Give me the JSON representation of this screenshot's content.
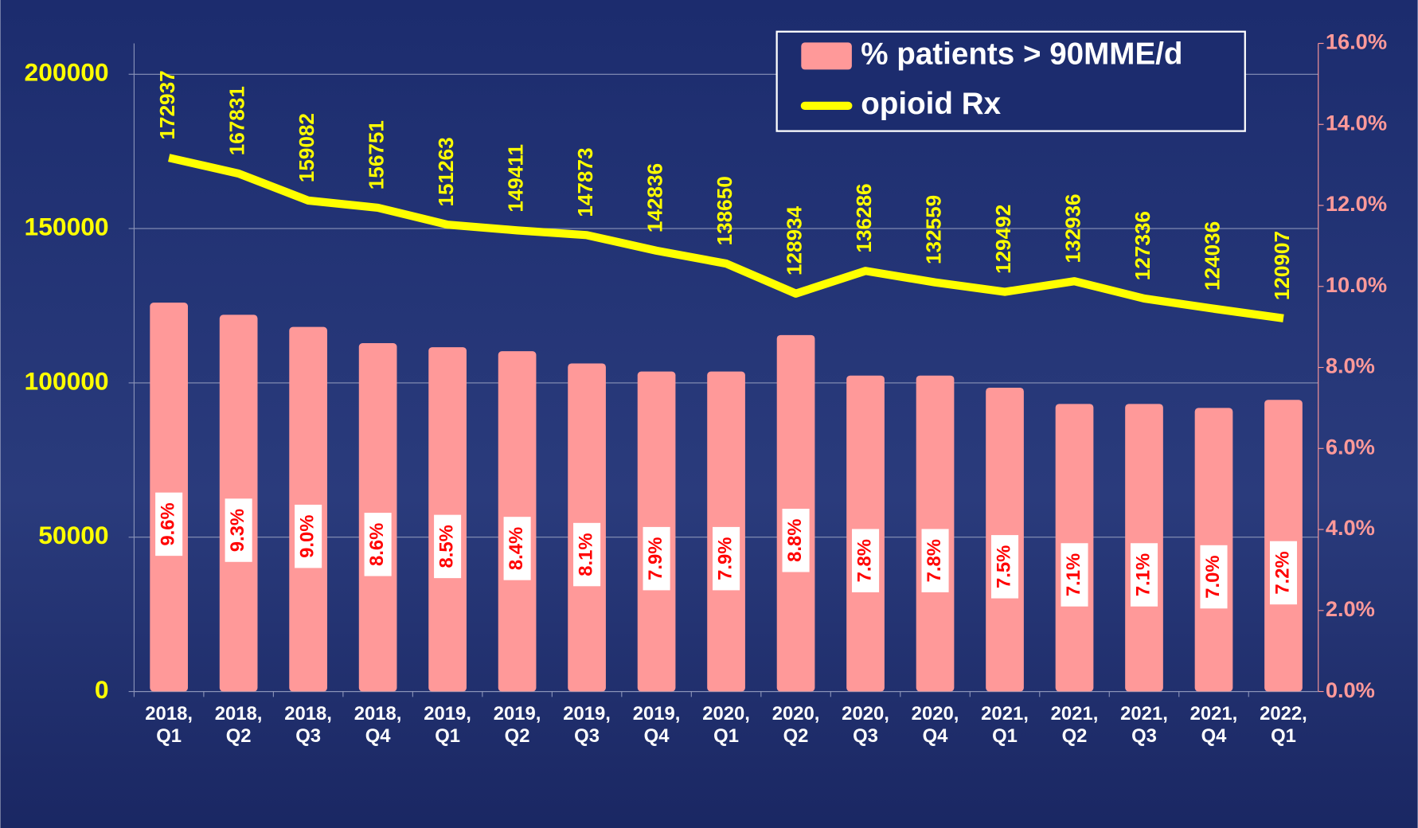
{
  "chart_data": {
    "type": "bar-line",
    "categories": [
      "2018, Q1",
      "2018, Q2",
      "2018, Q3",
      "2018, Q4",
      "2019, Q1",
      "2019, Q2",
      "2019, Q3",
      "2019, Q4",
      "2020, Q1",
      "2020, Q2",
      "2020, Q3",
      "2020, Q4",
      "2021, Q1",
      "2021, Q2",
      "2021, Q3",
      "2021, Q4",
      "2022, Q1"
    ],
    "series": [
      {
        "name": "% patients > 90MME/d",
        "type": "bar",
        "axis": "y2",
        "color": "#ff9999",
        "values": [
          9.6,
          9.3,
          9.0,
          8.6,
          8.5,
          8.4,
          8.1,
          7.9,
          7.9,
          8.8,
          7.8,
          7.8,
          7.5,
          7.1,
          7.1,
          7.0,
          7.2
        ],
        "value_labels": [
          "9.6%",
          "9.3%",
          "9.0%",
          "8.6%",
          "8.5%",
          "8.4%",
          "8.1%",
          "7.9%",
          "7.9%",
          "8.8%",
          "7.8%",
          "7.8%",
          "7.5%",
          "7.1%",
          "7.1%",
          "7.0%",
          "7.2%"
        ]
      },
      {
        "name": "opioid Rx",
        "type": "line",
        "color": "#ffff00",
        "values": [
          172937,
          167831,
          159082,
          156751,
          151263,
          149411,
          147873,
          142836,
          138650,
          128934,
          136286,
          132559,
          129492,
          132936,
          127336,
          124036,
          120907
        ]
      }
    ],
    "ylim": [
      0,
      210000
    ],
    "yticks": [
      0,
      50000,
      100000,
      150000,
      200000
    ],
    "y2lim": [
      0,
      16
    ],
    "y2ticks": [
      {
        "value": 0,
        "label": "0.0%"
      },
      {
        "value": 2,
        "label": "2.0%"
      },
      {
        "value": 4,
        "label": "4.0%"
      },
      {
        "value": 6,
        "label": "6.0%"
      },
      {
        "value": 8,
        "label": "8.0%"
      },
      {
        "value": 10,
        "label": "10.0%"
      },
      {
        "value": 12,
        "label": "12.0%"
      },
      {
        "value": 14,
        "label": "14.0%"
      },
      {
        "value": 16,
        "label": "16.0%"
      }
    ],
    "grid": true,
    "legend": "top-right"
  }
}
